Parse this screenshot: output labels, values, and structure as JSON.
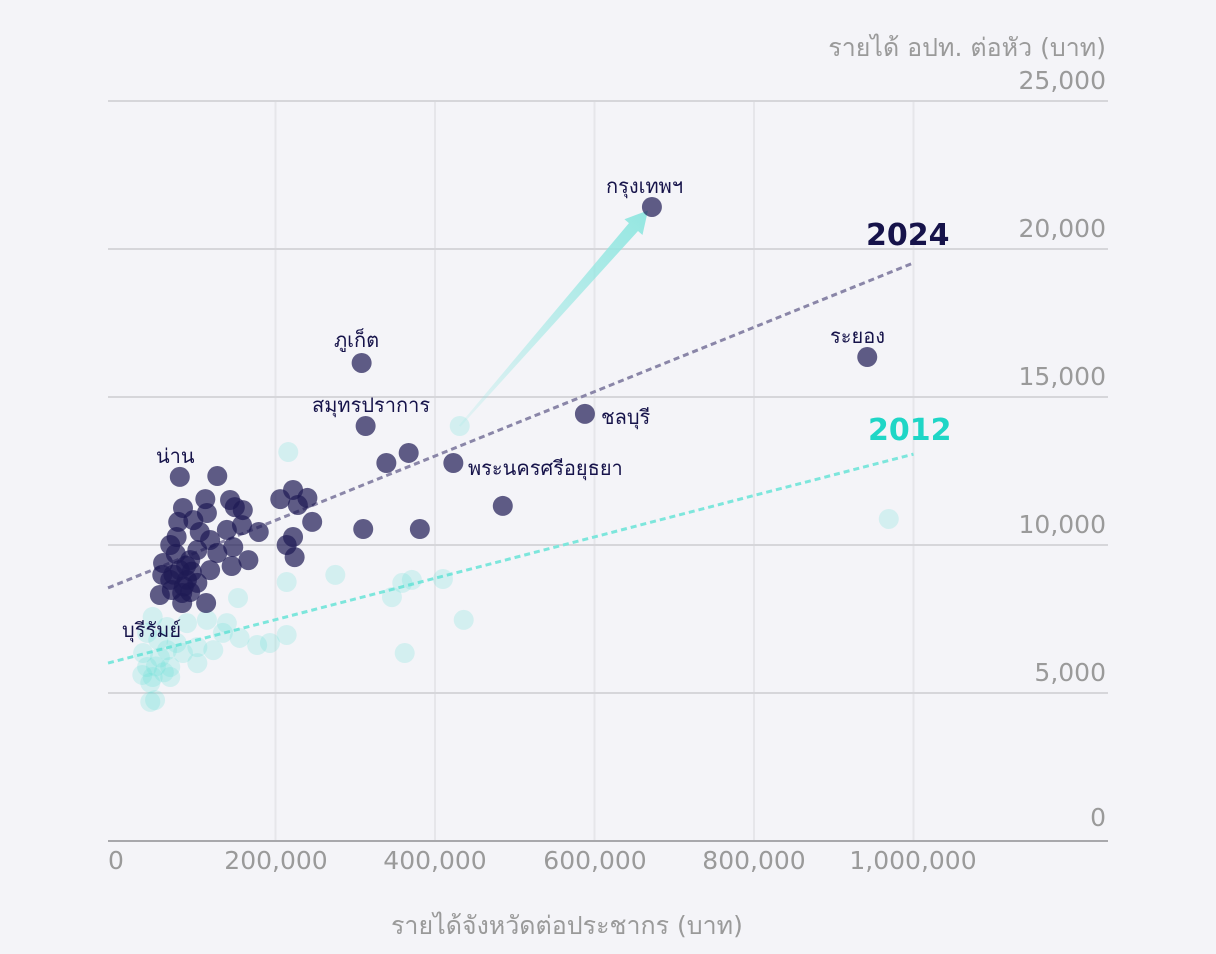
{
  "chart_data": {
    "type": "scatter",
    "title": "",
    "xlabel": "รายได้จังหวัดต่อประชากร (บาท)",
    "ylabel": "รายได้ อปท. ต่อหัว (บาท)",
    "xlim": [
      0,
      1245000
    ],
    "ylim": [
      0,
      25000
    ],
    "grid": true,
    "x_ticks": [
      "0",
      "200,000",
      "400,000",
      "600,000",
      "800,000",
      "1,000,000"
    ],
    "x_tick_values": [
      0,
      200000,
      400000,
      600000,
      800000,
      1000000
    ],
    "y_ticks": [
      "0",
      "5,000",
      "10,000",
      "15,000",
      "20,000",
      "25,000"
    ],
    "y_tick_values": [
      0,
      5000,
      10000,
      15000,
      20000,
      25000
    ],
    "colors": {
      "s2024": "#1e1a54",
      "s2012": "#5fe0d6",
      "bg": "#f4f4f8",
      "trend2024": "#8a86a8",
      "trend2012": "#7de6dc",
      "label2012": "#1fd6c6"
    },
    "series": [
      {
        "name": "2024",
        "trend": [
          [
            -10000,
            8550
          ],
          [
            1000000,
            19530
          ]
        ],
        "points": [
          [
            672000,
            21420
          ],
          [
            942000,
            16350
          ],
          [
            308000,
            16150
          ],
          [
            313000,
            14020
          ],
          [
            588000,
            14430
          ],
          [
            423000,
            12770
          ],
          [
            80000,
            12300
          ],
          [
            127000,
            12330
          ],
          [
            112000,
            11550
          ],
          [
            84000,
            11250
          ],
          [
            114000,
            11080
          ],
          [
            143000,
            11520
          ],
          [
            149000,
            11280
          ],
          [
            159000,
            11180
          ],
          [
            78000,
            10780
          ],
          [
            97000,
            10840
          ],
          [
            105000,
            10440
          ],
          [
            139000,
            10510
          ],
          [
            158000,
            10670
          ],
          [
            147000,
            9930
          ],
          [
            68000,
            10000
          ],
          [
            76000,
            10270
          ],
          [
            118000,
            10170
          ],
          [
            127000,
            9730
          ],
          [
            102000,
            9830
          ],
          [
            166000,
            9490
          ],
          [
            145000,
            9290
          ],
          [
            118000,
            9150
          ],
          [
            93000,
            9490
          ],
          [
            80000,
            9150
          ],
          [
            59000,
            9390
          ],
          [
            58000,
            8990
          ],
          [
            68000,
            8820
          ],
          [
            89000,
            8820
          ],
          [
            102000,
            8720
          ],
          [
            55000,
            8310
          ],
          [
            70000,
            8480
          ],
          [
            83000,
            8380
          ],
          [
            93000,
            8410
          ],
          [
            83000,
            8040
          ],
          [
            113000,
            8040
          ],
          [
            179000,
            10440
          ],
          [
            206000,
            11550
          ],
          [
            222000,
            11860
          ],
          [
            240000,
            11590
          ],
          [
            228000,
            11350
          ],
          [
            246000,
            10780
          ],
          [
            222000,
            10270
          ],
          [
            214000,
            10000
          ],
          [
            224000,
            9590
          ],
          [
            310000,
            10540
          ],
          [
            381000,
            10540
          ],
          [
            339000,
            12770
          ],
          [
            367000,
            13110
          ],
          [
            485000,
            11320
          ],
          [
            75000,
            9700
          ],
          [
            88000,
            9300
          ],
          [
            95000,
            9100
          ],
          [
            72000,
            9000
          ],
          [
            85000,
            8600
          ]
        ]
      },
      {
        "name": "2012",
        "trend": [
          [
            -10000,
            6010
          ],
          [
            1000000,
            13070
          ]
        ],
        "points": [
          [
            431000,
            14020
          ],
          [
            969000,
            10880
          ],
          [
            216000,
            13140
          ],
          [
            214000,
            8750
          ],
          [
            275000,
            8990
          ],
          [
            153000,
            8210
          ],
          [
            346000,
            8240
          ],
          [
            359000,
            8720
          ],
          [
            371000,
            8820
          ],
          [
            410000,
            8850
          ],
          [
            362000,
            6350
          ],
          [
            436000,
            7470
          ],
          [
            214000,
            6960
          ],
          [
            193000,
            6690
          ],
          [
            177000,
            6620
          ],
          [
            155000,
            6860
          ],
          [
            134000,
            7030
          ],
          [
            139000,
            7360
          ],
          [
            114000,
            7470
          ],
          [
            89000,
            7360
          ],
          [
            64000,
            7230
          ],
          [
            46000,
            7570
          ],
          [
            39000,
            7030
          ],
          [
            53000,
            6790
          ],
          [
            76000,
            6690
          ],
          [
            102000,
            6550
          ],
          [
            122000,
            6450
          ],
          [
            84000,
            6350
          ],
          [
            64000,
            6450
          ],
          [
            34000,
            6350
          ],
          [
            39000,
            5880
          ],
          [
            68000,
            5880
          ],
          [
            102000,
            6010
          ],
          [
            33000,
            5610
          ],
          [
            46000,
            5540
          ],
          [
            43000,
            5340
          ],
          [
            68000,
            5540
          ],
          [
            43000,
            4700
          ],
          [
            49000,
            4760
          ],
          [
            55000,
            6200
          ],
          [
            60000,
            5700
          ],
          [
            50000,
            5900
          ]
        ]
      }
    ],
    "arrow": {
      "from": [
        431000,
        14020
      ],
      "to": [
        667000,
        21300
      ]
    },
    "labels": [
      {
        "text": "กรุงเทพฯ"
      },
      {
        "text": "ระยอง"
      },
      {
        "text": "ภูเก็ต"
      },
      {
        "text": "สมุทรปราการ"
      },
      {
        "text": "ชลบุรี"
      },
      {
        "text": "พระนครศรีอยุธยา"
      },
      {
        "text": "น่าน"
      },
      {
        "text": "บุรีรัมย์"
      }
    ],
    "series_labels": [
      "2024",
      "2012"
    ]
  }
}
